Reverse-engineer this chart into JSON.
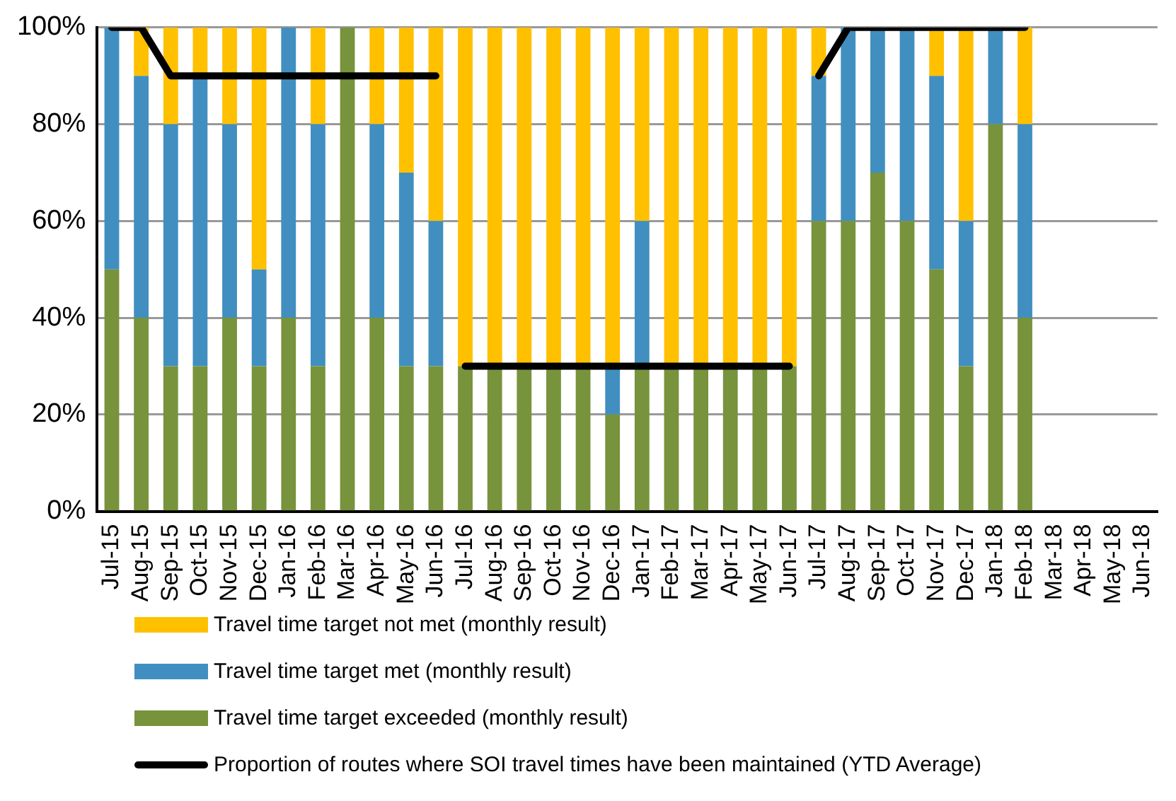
{
  "chart_data": {
    "type": "bar",
    "stacked": true,
    "categories": [
      "Jul-15",
      "Aug-15",
      "Sep-15",
      "Oct-15",
      "Nov-15",
      "Dec-15",
      "Jan-16",
      "Feb-16",
      "Mar-16",
      "Apr-16",
      "May-16",
      "Jun-16",
      "Jul-16",
      "Aug-16",
      "Sep-16",
      "Oct-16",
      "Nov-16",
      "Dec-16",
      "Jan-17",
      "Feb-17",
      "Mar-17",
      "Apr-17",
      "May-17",
      "Jun-17",
      "Jul-17",
      "Aug-17",
      "Sep-17",
      "Oct-17",
      "Nov-17",
      "Dec-17",
      "Jan-18",
      "Feb-18",
      "Mar-18",
      "Apr-18",
      "May-18",
      "Jun-18"
    ],
    "series": [
      {
        "name": "Travel time target exceeded (monthly result)",
        "color": "#77933c",
        "values": [
          50,
          40,
          30,
          30,
          40,
          30,
          40,
          30,
          100,
          40,
          30,
          30,
          30,
          30,
          30,
          30,
          30,
          20,
          30,
          30,
          30,
          30,
          30,
          30,
          60,
          60,
          70,
          60,
          50,
          30,
          80,
          40,
          null,
          null,
          null,
          null
        ]
      },
      {
        "name": "Travel time target met (monthly result)",
        "color": "#418fc0",
        "values": [
          50,
          50,
          50,
          60,
          40,
          20,
          60,
          50,
          0,
          40,
          40,
          30,
          0,
          0,
          0,
          0,
          0,
          10,
          30,
          0,
          0,
          0,
          0,
          0,
          30,
          40,
          30,
          40,
          40,
          30,
          20,
          40,
          null,
          null,
          null,
          null
        ]
      },
      {
        "name": "Travel time target not met (monthly result)",
        "color": "#ffc000",
        "values": [
          0,
          10,
          20,
          10,
          20,
          50,
          0,
          20,
          0,
          20,
          30,
          40,
          70,
          70,
          70,
          70,
          70,
          70,
          40,
          70,
          70,
          70,
          70,
          70,
          10,
          0,
          0,
          0,
          10,
          40,
          0,
          20,
          null,
          null,
          null,
          null
        ]
      },
      {
        "type": "line",
        "name": "Proportion of routes where SOI travel times have been maintained (YTD Average)",
        "color": "#000000",
        "values": [
          100,
          100,
          90,
          90,
          90,
          90,
          90,
          90,
          90,
          90,
          90,
          90,
          null,
          null,
          null,
          null,
          null,
          null,
          null,
          null,
          null,
          null,
          null,
          null,
          null,
          null,
          null,
          null,
          null,
          null,
          null,
          null,
          null,
          null,
          null,
          null
        ]
      },
      {
        "type": "line",
        "color": "#000000",
        "values": [
          null,
          null,
          null,
          null,
          null,
          null,
          null,
          null,
          null,
          null,
          null,
          null,
          30,
          30,
          30,
          30,
          30,
          30,
          30,
          30,
          30,
          30,
          30,
          30,
          null,
          null,
          null,
          null,
          null,
          null,
          null,
          null,
          null,
          null,
          null,
          null
        ]
      },
      {
        "type": "line",
        "color": "#000000",
        "values": [
          null,
          null,
          null,
          null,
          null,
          null,
          null,
          null,
          null,
          null,
          null,
          null,
          null,
          null,
          null,
          null,
          null,
          null,
          null,
          null,
          null,
          null,
          null,
          null,
          90,
          100,
          100,
          100,
          100,
          100,
          100,
          100,
          null,
          null,
          null,
          null
        ]
      }
    ],
    "ylim": [
      0,
      100
    ],
    "yticks": [
      {
        "value": 0,
        "label": "0%"
      },
      {
        "value": 20,
        "label": "20%"
      },
      {
        "value": 40,
        "label": "40%"
      },
      {
        "value": 60,
        "label": "60%"
      },
      {
        "value": 80,
        "label": "80%"
      },
      {
        "value": 100,
        "label": "100%"
      }
    ],
    "grid": "y",
    "legend": "bottom",
    "marker": "none",
    "line_style": "solid"
  }
}
